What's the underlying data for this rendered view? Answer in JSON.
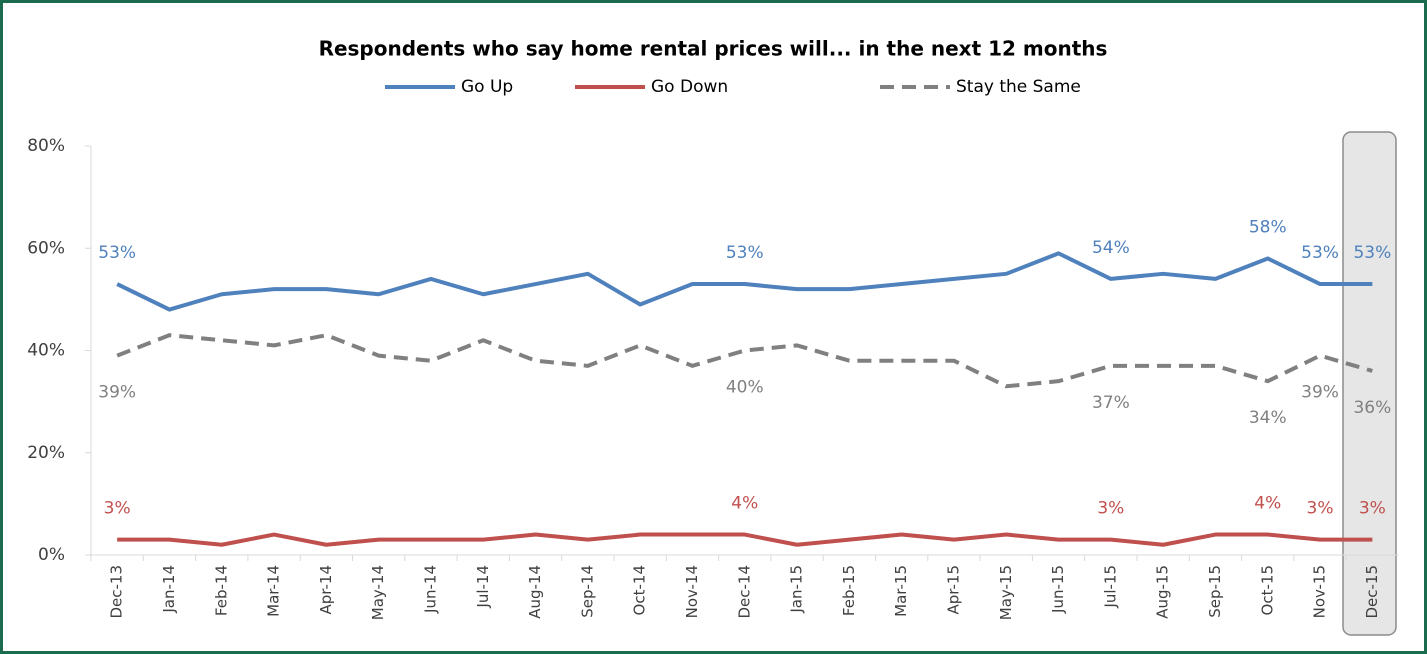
{
  "chart_data": {
    "type": "line",
    "title": "Respondents who say home rental prices will... in the next 12 months",
    "categories": [
      "Dec-13",
      "Jan-14",
      "Feb-14",
      "Mar-14",
      "Apr-14",
      "May-14",
      "Jun-14",
      "Jul-14",
      "Aug-14",
      "Sep-14",
      "Oct-14",
      "Nov-14",
      "Dec-14",
      "Jan-15",
      "Feb-15",
      "Mar-15",
      "Apr-15",
      "May-15",
      "Jun-15",
      "Jul-15",
      "Aug-15",
      "Sep-15",
      "Oct-15",
      "Nov-15",
      "Dec-15"
    ],
    "series": [
      {
        "name": "Go Up",
        "color": "#4f81bd",
        "dashed": false,
        "values": [
          53,
          48,
          51,
          52,
          52,
          51,
          54,
          51,
          53,
          55,
          49,
          53,
          53,
          52,
          52,
          53,
          54,
          55,
          59,
          54,
          55,
          54,
          58,
          53,
          53
        ],
        "value_labels": [
          "53%",
          null,
          null,
          null,
          null,
          null,
          null,
          null,
          null,
          null,
          null,
          null,
          "53%",
          null,
          null,
          null,
          null,
          null,
          null,
          "54%",
          null,
          null,
          "58%",
          "53%",
          "53%"
        ]
      },
      {
        "name": "Go Down",
        "color": "#c0504d",
        "dashed": false,
        "values": [
          3,
          3,
          2,
          4,
          2,
          3,
          3,
          3,
          4,
          3,
          4,
          4,
          4,
          2,
          3,
          4,
          3,
          4,
          3,
          3,
          2,
          4,
          4,
          3,
          3
        ],
        "value_labels": [
          "3%",
          null,
          null,
          null,
          null,
          null,
          null,
          null,
          null,
          null,
          null,
          null,
          "4%",
          null,
          null,
          null,
          null,
          null,
          null,
          "3%",
          null,
          null,
          "4%",
          "3%",
          "3%"
        ]
      },
      {
        "name": "Stay the Same",
        "color": "#808080",
        "dashed": true,
        "values": [
          39,
          43,
          42,
          41,
          43,
          39,
          38,
          42,
          38,
          37,
          41,
          37,
          40,
          41,
          38,
          38,
          38,
          33,
          34,
          37,
          37,
          37,
          34,
          39,
          36
        ],
        "value_labels": [
          "39%",
          null,
          null,
          null,
          null,
          null,
          null,
          null,
          null,
          null,
          null,
          null,
          "40%",
          null,
          null,
          null,
          null,
          null,
          null,
          "37%",
          null,
          null,
          "34%",
          "39%",
          "36%"
        ]
      }
    ],
    "ylim": [
      0,
      80
    ],
    "yticks": [
      {
        "value": 0,
        "label": "0%"
      },
      {
        "value": 20,
        "label": "20%"
      },
      {
        "value": 40,
        "label": "40%"
      },
      {
        "value": 60,
        "label": "60%"
      },
      {
        "value": 80,
        "label": "80%"
      }
    ],
    "grid": false,
    "legend": "top"
  }
}
